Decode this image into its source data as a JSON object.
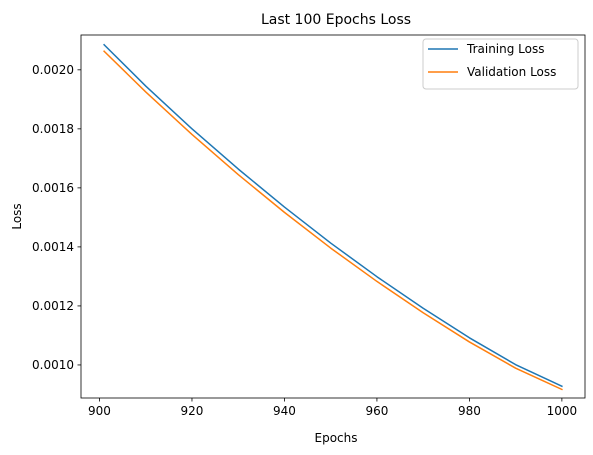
{
  "chart_data": {
    "type": "line",
    "title": "Last 100 Epochs Loss",
    "xlabel": "Epochs",
    "ylabel": "Loss",
    "xlim": [
      896,
      1005
    ],
    "ylim": [
      0.000888,
      0.002118
    ],
    "xticks": [
      900,
      920,
      940,
      960,
      980,
      1000
    ],
    "yticks": [
      0.001,
      0.0012,
      0.0014,
      0.0016,
      0.0018,
      0.002
    ],
    "ytick_labels": [
      "0.0010",
      "0.0012",
      "0.0014",
      "0.0016",
      "0.0018",
      "0.0020"
    ],
    "grid": false,
    "legend_position": "top-right",
    "x": [
      901,
      910,
      920,
      930,
      940,
      950,
      960,
      970,
      980,
      990,
      1000
    ],
    "series": [
      {
        "name": "Training Loss",
        "color": "#1f77b4",
        "values": [
          0.002085,
          0.001945,
          0.0018,
          0.001664,
          0.001535,
          0.001413,
          0.001299,
          0.001192,
          0.001092,
          0.001001,
          0.000928
        ]
      },
      {
        "name": "Validation Loss",
        "color": "#ff7f0e",
        "values": [
          0.002063,
          0.001925,
          0.001781,
          0.001645,
          0.001517,
          0.001396,
          0.001283,
          0.001177,
          0.001078,
          0.000989,
          0.000917
        ]
      }
    ]
  }
}
